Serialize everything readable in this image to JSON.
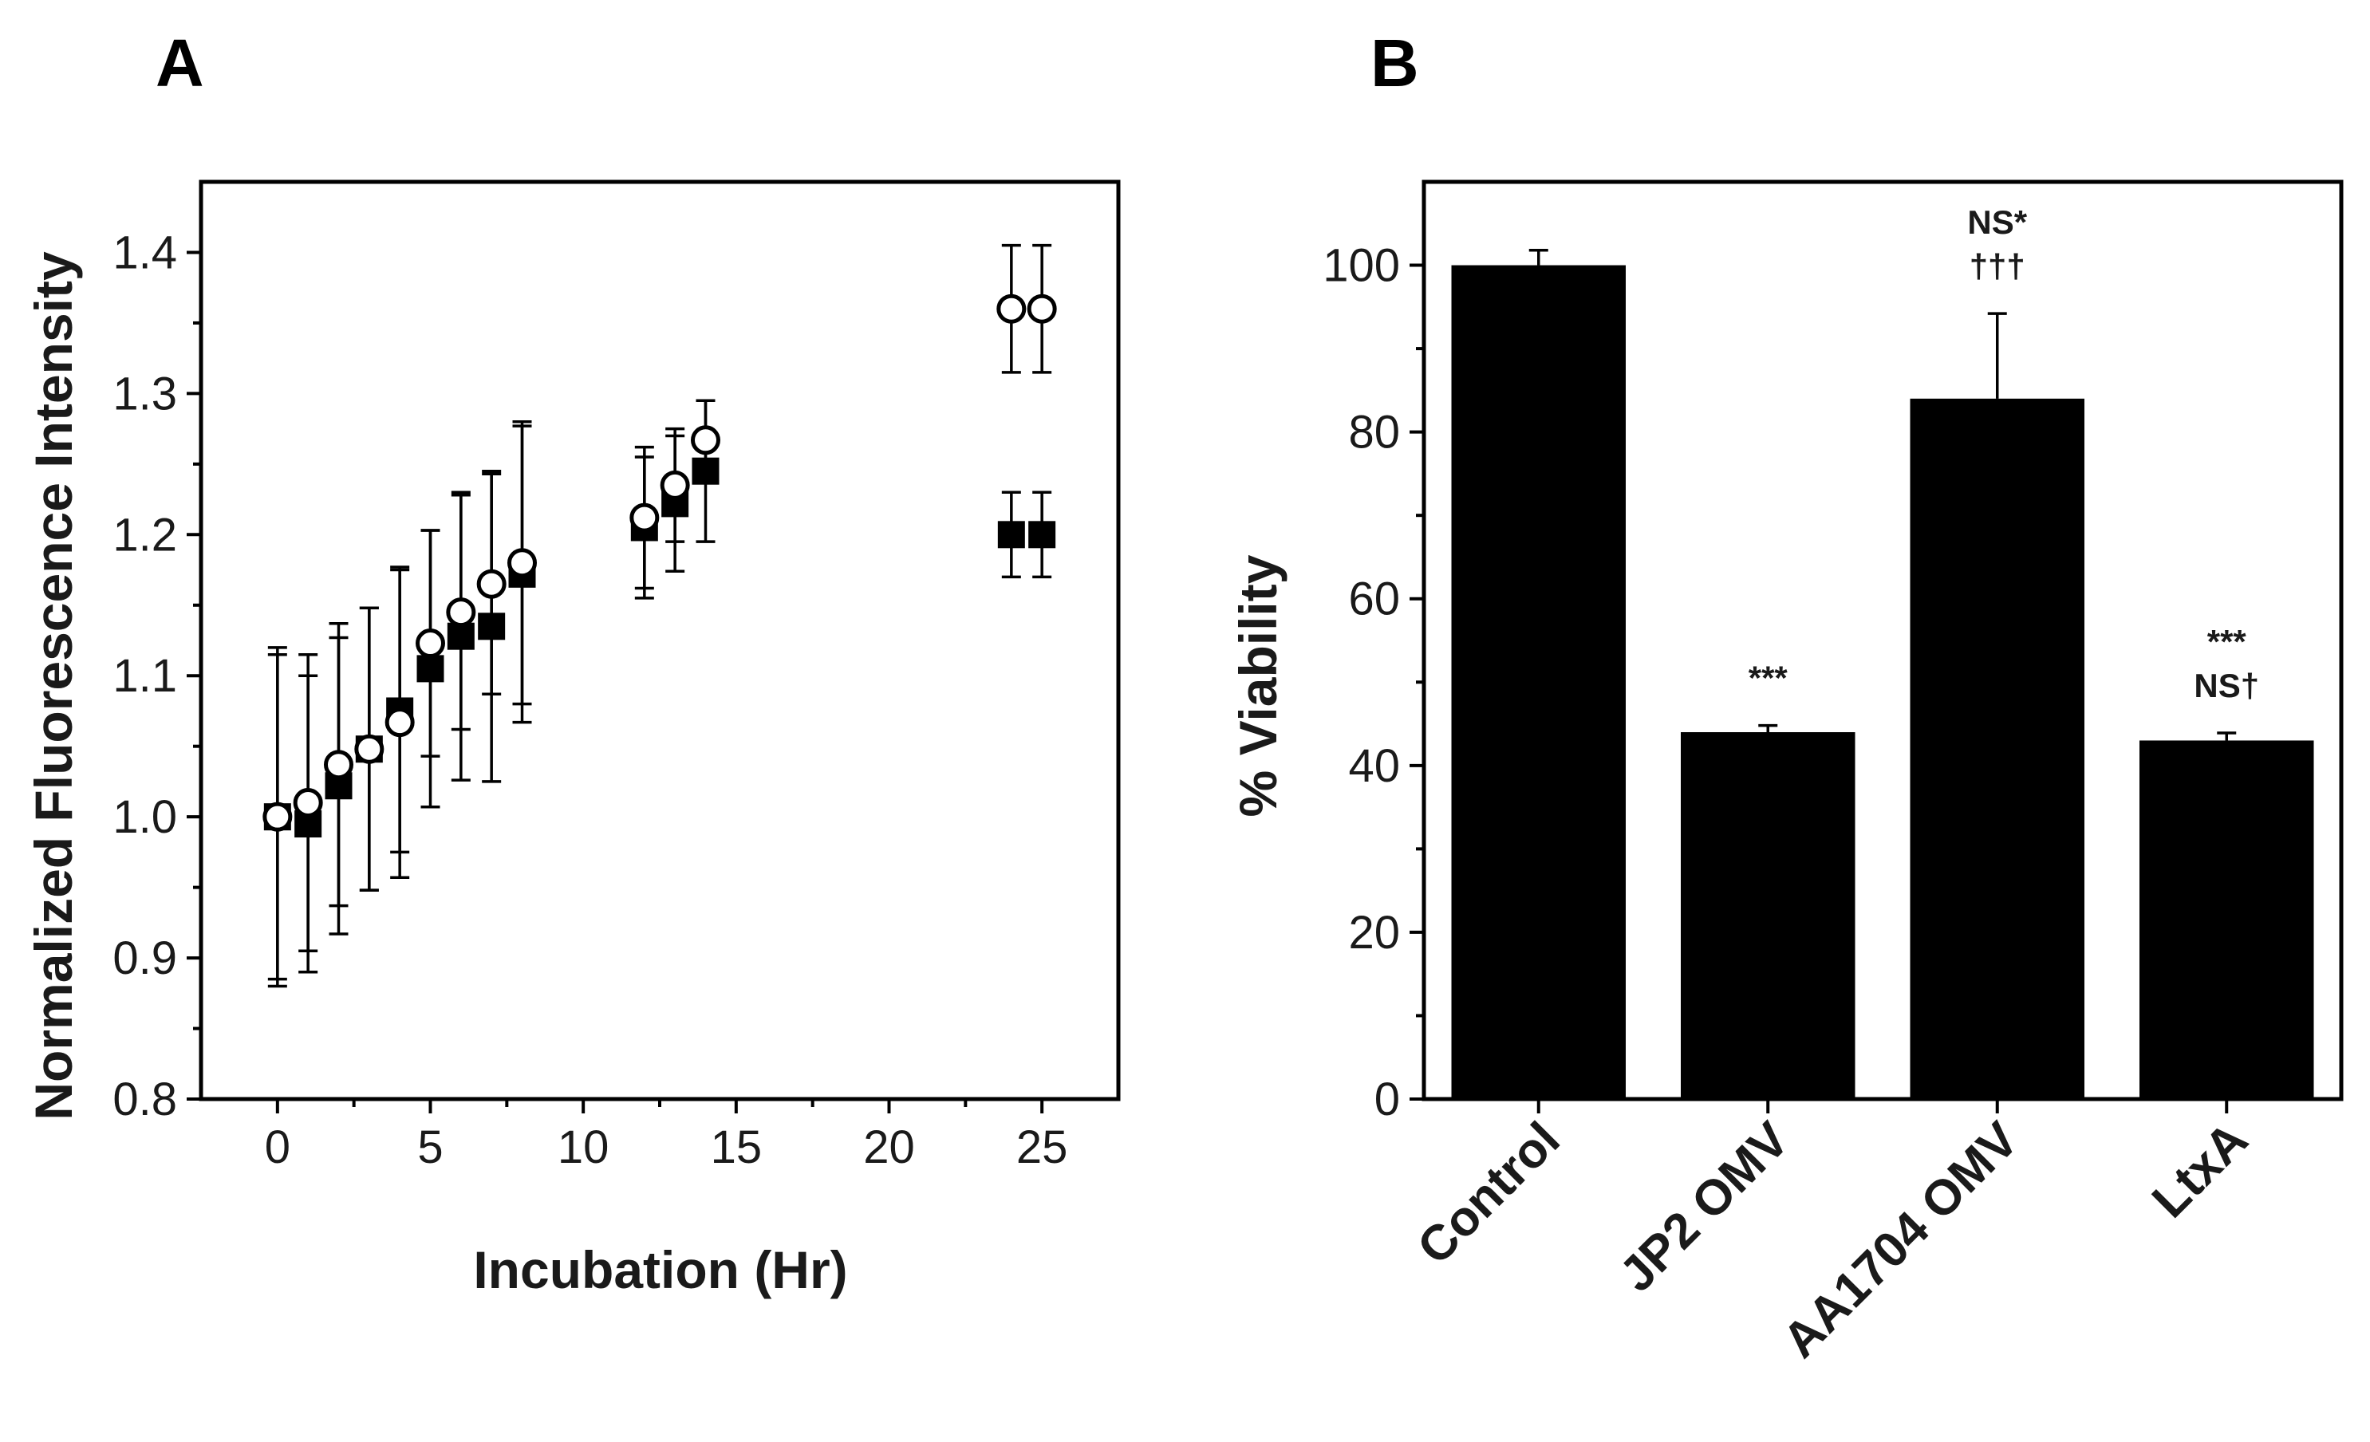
{
  "figure": {
    "panel_a_label": "A",
    "panel_b_label": "B"
  },
  "chart_data": [
    {
      "panel": "A",
      "type": "scatter",
      "title": "",
      "xlabel": "Incubation (Hr)",
      "ylabel": "Normalized Fluorescence Intensity",
      "xlim": [
        -2.5,
        27.5
      ],
      "ylim": [
        0.8,
        1.45
      ],
      "xticks": [
        0,
        5,
        10,
        15,
        20,
        25
      ],
      "xtick_labels": [
        "0",
        "5",
        "10",
        "15",
        "20",
        "25"
      ],
      "yticks": [
        0.8,
        0.9,
        1.0,
        1.1,
        1.2,
        1.3,
        1.4
      ],
      "ytick_labels": [
        "0.8",
        "0.9",
        "1.0",
        "1.1",
        "1.2",
        "1.3",
        "1.4"
      ],
      "grid": false,
      "series": [
        {
          "name": "filled squares",
          "marker": "square",
          "color": "#000000",
          "x": [
            0,
            1,
            2,
            3,
            4,
            5,
            6,
            7,
            8,
            12,
            13,
            14,
            24,
            25
          ],
          "y": [
            1.0,
            0.995,
            1.022,
            1.048,
            1.075,
            1.105,
            1.128,
            1.135,
            1.172,
            1.205,
            1.222,
            1.245,
            1.2,
            1.2
          ],
          "err": [
            0.115,
            0.105,
            0.105,
            0.1,
            0.1,
            0.098,
            0.102,
            0.11,
            0.105,
            0.05,
            0.048,
            0.05,
            0.03,
            0.03
          ]
        },
        {
          "name": "open circles",
          "marker": "circle",
          "color": "#ffffff",
          "x": [
            0,
            1,
            2,
            3,
            4,
            5,
            6,
            7,
            8,
            12,
            13,
            14,
            24,
            25
          ],
          "y": [
            1.0,
            1.01,
            1.037,
            1.048,
            1.067,
            1.123,
            1.145,
            1.165,
            1.18,
            1.212,
            1.235,
            1.267,
            1.36,
            1.36
          ],
          "err": [
            0.12,
            0.105,
            0.1,
            0.1,
            0.11,
            0.08,
            0.083,
            0.078,
            0.1,
            0.05,
            0.04,
            0.028,
            0.045,
            0.045
          ]
        }
      ]
    },
    {
      "panel": "B",
      "type": "bar",
      "title": "",
      "xlabel": "",
      "ylabel": "% Viability",
      "ylim": [
        0,
        110
      ],
      "yticks": [
        0,
        20,
        40,
        60,
        80,
        100
      ],
      "ytick_labels": [
        "0",
        "20",
        "40",
        "60",
        "80",
        "100"
      ],
      "grid": false,
      "bar_color": "#000000",
      "categories": [
        "Control",
        "JP2 OMV",
        "AA1704 OMV",
        "LtxA"
      ],
      "values": [
        100,
        44,
        84,
        43
      ],
      "errors": [
        1.8,
        0.8,
        10.2,
        0.9
      ],
      "annotations": [
        {
          "category": "JP2 OMV",
          "lines": [
            "***"
          ]
        },
        {
          "category": "AA1704 OMV",
          "lines": [
            "NS*",
            "†††"
          ]
        },
        {
          "category": "LtxA",
          "lines": [
            "***",
            "NS†"
          ]
        }
      ]
    }
  ]
}
